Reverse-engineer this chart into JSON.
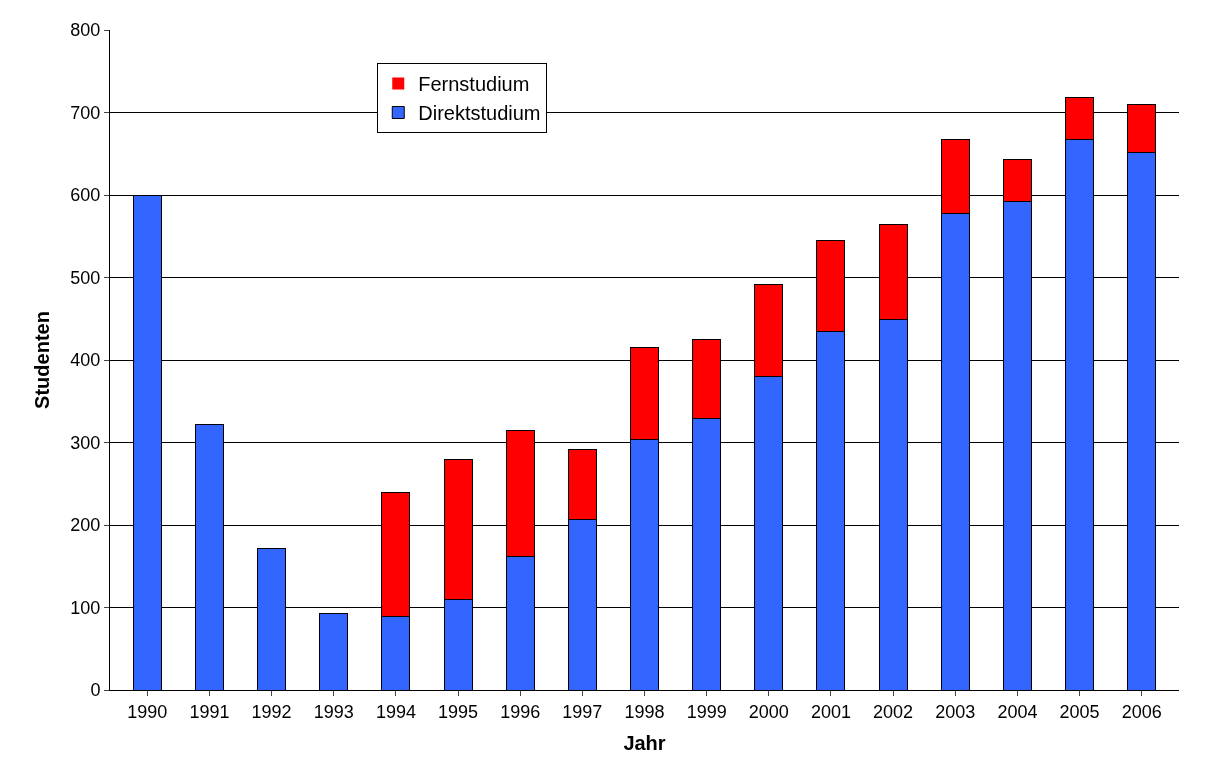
{
  "chart_data": {
    "type": "bar",
    "xlabel": "Jahr",
    "ylabel": "Studenten",
    "stacked": true,
    "categories": [
      "1990",
      "1991",
      "1992",
      "1993",
      "1994",
      "1995",
      "1996",
      "1997",
      "1998",
      "1999",
      "2000",
      "2001",
      "2002",
      "2003",
      "2004",
      "2005",
      "2006"
    ],
    "series": [
      {
        "name": "Direktstudium",
        "color": "#3366ff",
        "values": [
          600,
          322,
          172,
          93,
          89,
          110,
          162,
          207,
          304,
          329,
          380,
          435,
          449,
          578,
          592,
          667,
          651
        ]
      },
      {
        "name": "Fernstudium",
        "color": "#ff0000",
        "values": [
          0,
          0,
          0,
          0,
          150,
          170,
          153,
          85,
          111,
          96,
          112,
          110,
          115,
          89,
          51,
          51,
          59
        ]
      }
    ],
    "ylim": [
      0,
      800
    ],
    "yticks": [
      0,
      100,
      200,
      300,
      400,
      500,
      600,
      700,
      800
    ],
    "grid": "y",
    "legend": "top left"
  }
}
